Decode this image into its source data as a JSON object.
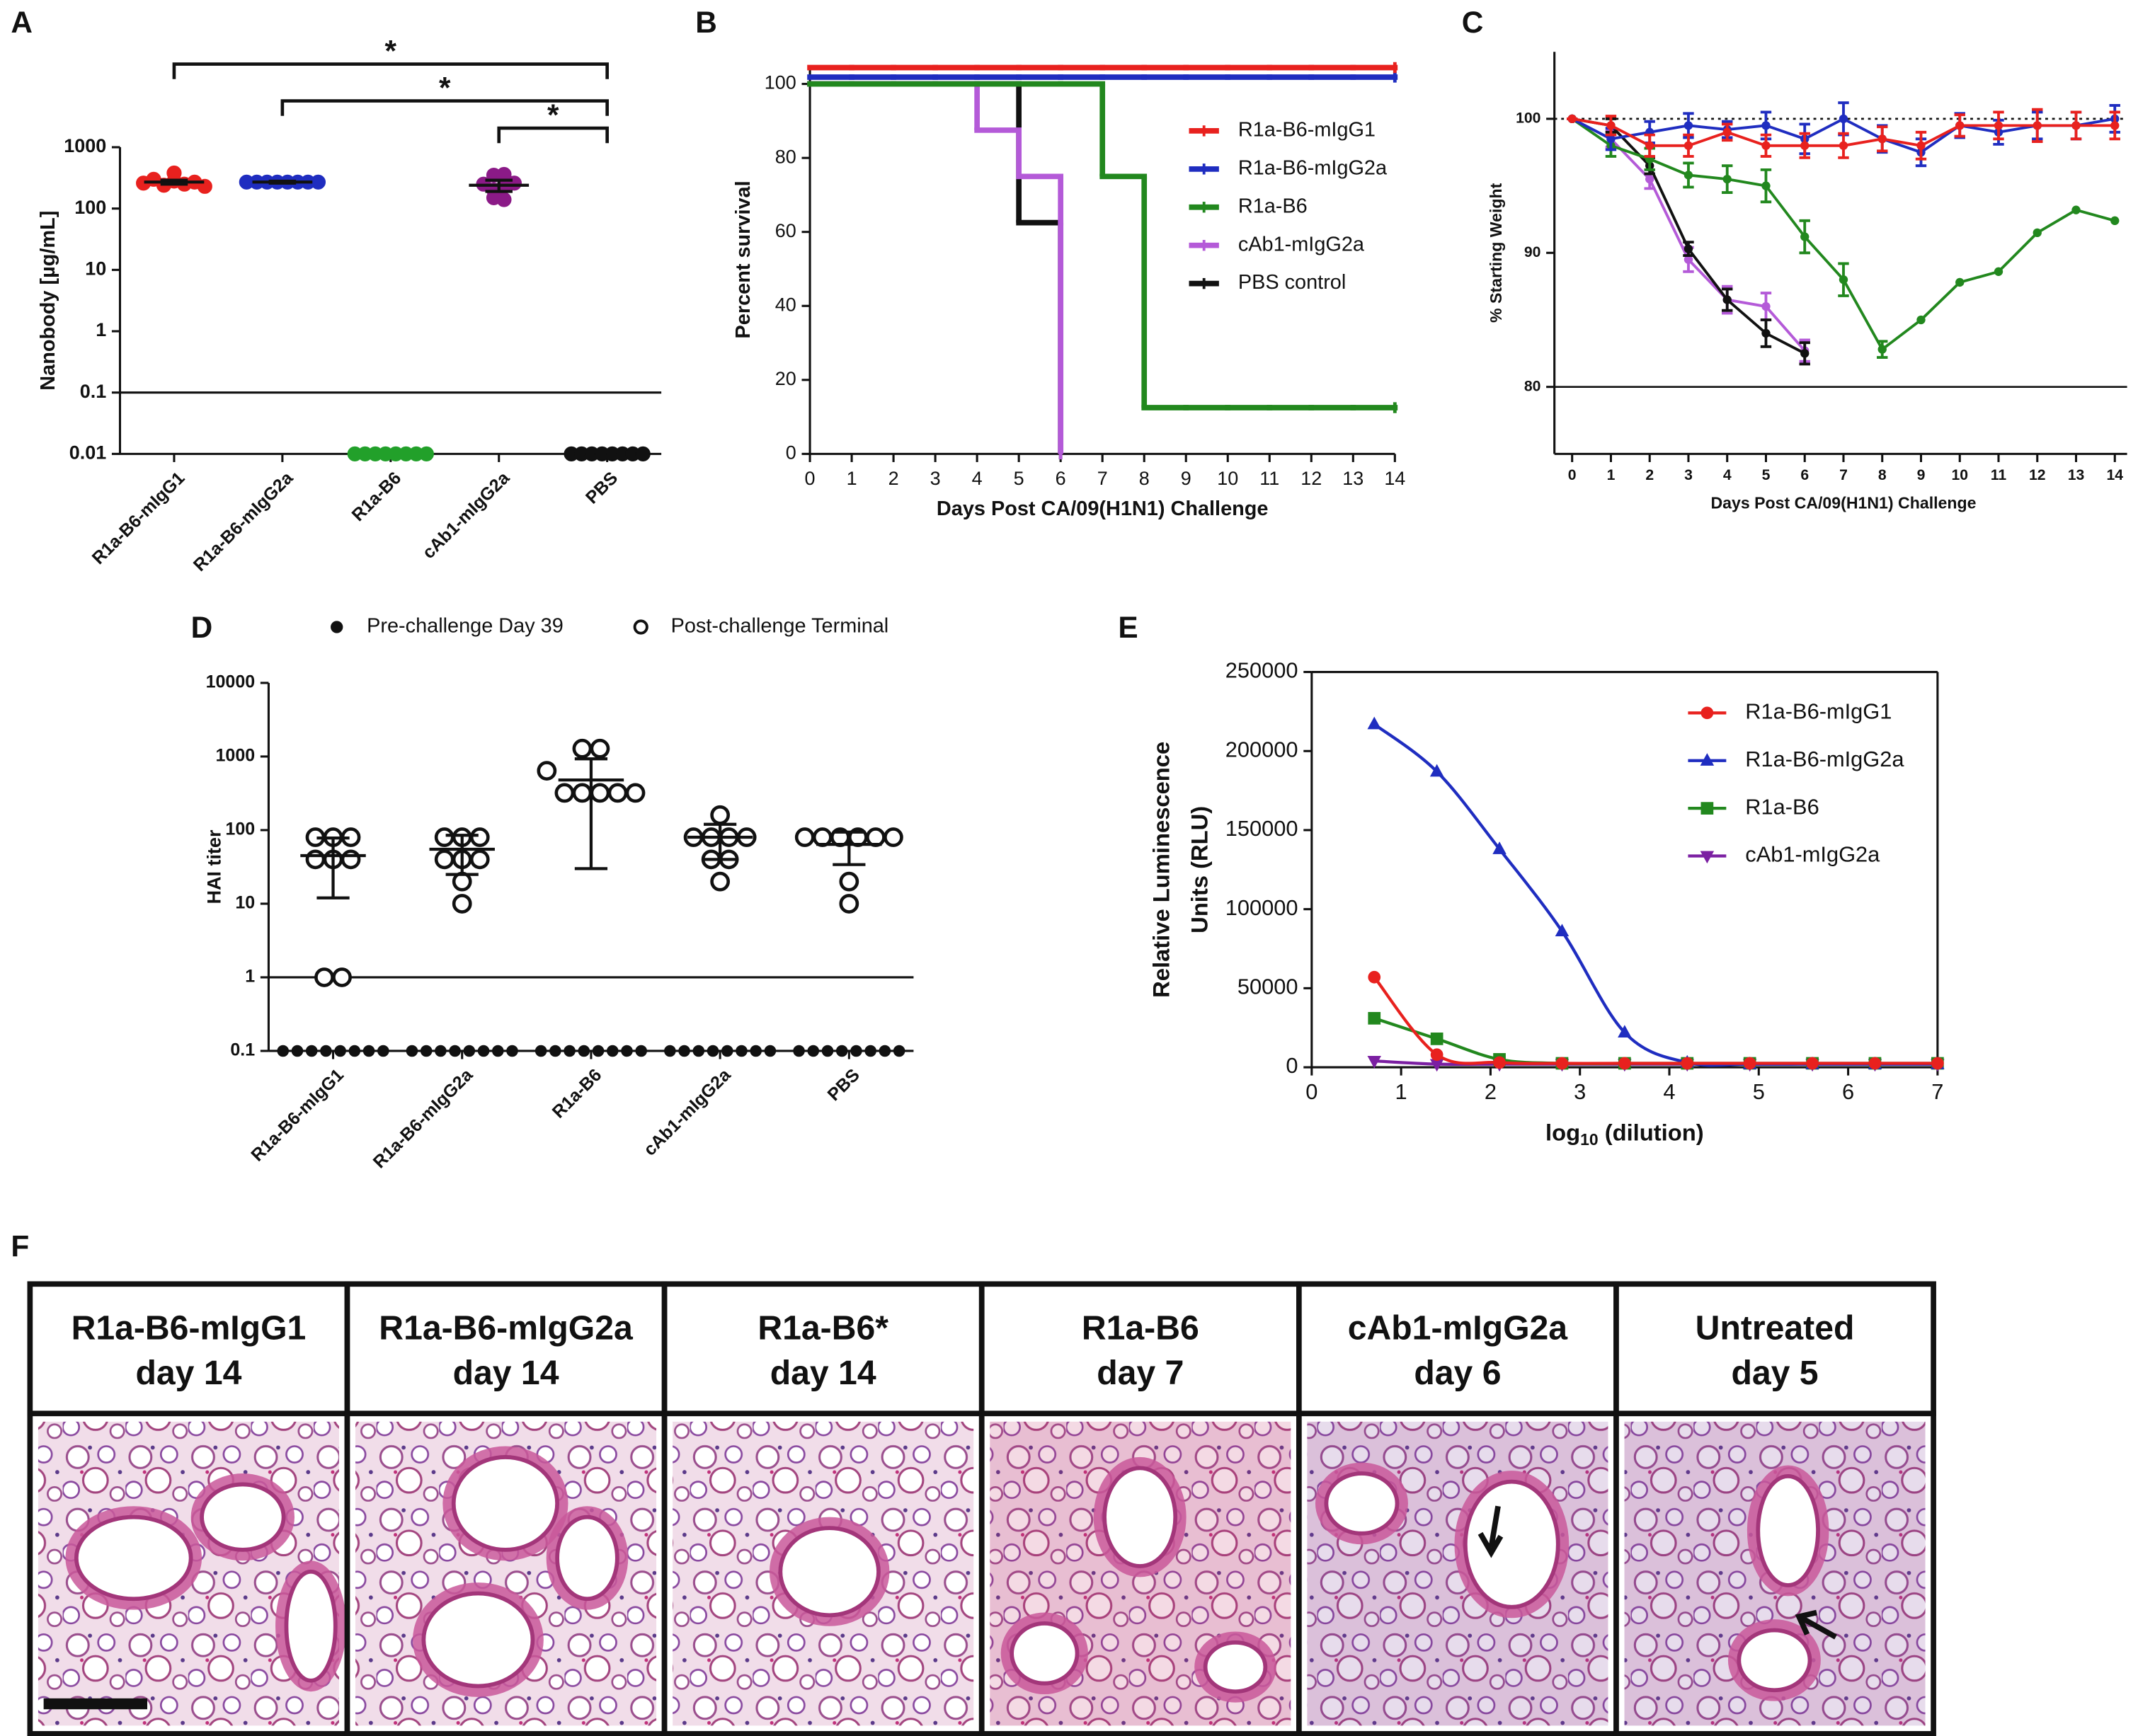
{
  "chart_data": [
    {
      "panel": "A",
      "type": "dot",
      "log_y": true,
      "ylabel": "Nanobody [µg/mL]",
      "ylim": [
        0.01,
        1000
      ],
      "yticks": [
        0.01,
        0.1,
        1,
        10,
        100,
        1000
      ],
      "categories": [
        "R1a-B6-mIgG1",
        "R1a-B6-mIgG2a",
        "R1a-B6",
        "cAb1-mIgG2a",
        "PBS"
      ],
      "colors": [
        "#e8211e",
        "#1f2dc0",
        "#22a02a",
        "#8b1a87",
        "#111111"
      ],
      "points": [
        [
          260,
          300,
          240,
          280,
          380,
          250,
          270,
          230
        ],
        [
          270,
          270,
          270,
          270,
          270,
          270,
          270,
          270
        ],
        [
          0.01,
          0.01,
          0.01,
          0.01,
          0.01,
          0.01,
          0.01,
          0.01
        ],
        [
          350,
          360,
          250,
          200,
          230,
          150,
          140,
          260
        ],
        [
          0.01,
          0.01,
          0.01,
          0.01,
          0.01,
          0.01,
          0.01,
          0.01
        ]
      ],
      "means": [
        270,
        270,
        null,
        240,
        null
      ],
      "errors": [
        20,
        10,
        null,
        50,
        null
      ],
      "reference_line": 0.1,
      "brackets": [
        {
          "from": 0,
          "to": 4,
          "label": "*"
        },
        {
          "from": 1,
          "to": 4,
          "label": "*"
        },
        {
          "from": 3,
          "to": 4,
          "label": "*"
        }
      ]
    },
    {
      "panel": "B",
      "type": "line",
      "step": true,
      "ylabel": "Percent survival",
      "xlabel": "Days Post CA/09(H1N1) Challenge",
      "x": [
        0,
        1,
        2,
        3,
        4,
        5,
        6,
        7,
        8,
        9,
        10,
        11,
        12,
        13,
        14
      ],
      "xlim": [
        0,
        14
      ],
      "xticks": [
        0,
        1,
        2,
        3,
        4,
        5,
        6,
        7,
        8,
        9,
        10,
        11,
        12,
        13,
        14
      ],
      "ylim": [
        0,
        105
      ],
      "yticks": [
        0,
        20,
        40,
        60,
        80,
        100
      ],
      "legend": "upper right",
      "series": [
        {
          "name": "R1a-B6-mIgG1",
          "color": "#e8211e",
          "values": [
            100,
            100,
            100,
            100,
            100,
            100,
            100,
            100,
            100,
            100,
            100,
            100,
            100,
            100,
            100
          ]
        },
        {
          "name": "R1a-B6-mIgG2a",
          "color": "#1f2dc0",
          "values": [
            100,
            100,
            100,
            100,
            100,
            100,
            100,
            100,
            100,
            100,
            100,
            100,
            100,
            100,
            100
          ]
        },
        {
          "name": "R1a-B6",
          "color": "#22881e",
          "values": [
            100,
            100,
            100,
            100,
            100,
            100,
            100,
            75,
            12.5,
            12.5,
            12.5,
            12.5,
            12.5,
            12.5,
            12.5
          ]
        },
        {
          "name": "cAb1-mIgG2a",
          "color": "#b45ad8",
          "values": [
            100,
            100,
            100,
            100,
            87.5,
            75,
            0,
            null,
            null,
            null,
            null,
            null,
            null,
            null,
            null
          ]
        },
        {
          "name": "PBS control",
          "color": "#111111",
          "values": [
            100,
            100,
            100,
            100,
            100,
            62.5,
            0,
            null,
            null,
            null,
            null,
            null,
            null,
            null,
            null
          ]
        }
      ]
    },
    {
      "panel": "C",
      "type": "line",
      "ylabel": "% Starting Weight",
      "xlabel": "Days Post CA/09(H1N1) Challenge",
      "x": [
        0,
        1,
        2,
        3,
        4,
        5,
        6,
        7,
        8,
        9,
        10,
        11,
        12,
        13,
        14
      ],
      "xlim": [
        0,
        14
      ],
      "xticks": [
        0,
        1,
        2,
        3,
        4,
        5,
        6,
        7,
        8,
        9,
        10,
        11,
        12,
        13,
        14
      ],
      "ylim": [
        75,
        105
      ],
      "yticks": [
        80,
        90,
        100
      ],
      "reference_lines": [
        {
          "value": 100,
          "style": "dotted"
        },
        {
          "value": 80,
          "style": "solid"
        }
      ],
      "series": [
        {
          "color": "#e8211e",
          "values": [
            100,
            99.5,
            98,
            98,
            99,
            98,
            98,
            98,
            98.5,
            98,
            99.5,
            99.5,
            99.5,
            99.5,
            99.5
          ],
          "errors": [
            0,
            0.7,
            0.8,
            0.8,
            0.6,
            0.8,
            0.9,
            0.9,
            0.9,
            1,
            0.8,
            1,
            1.2,
            1,
            1
          ]
        },
        {
          "color": "#1f2dc0",
          "values": [
            100,
            98.5,
            99,
            99.5,
            99.2,
            99.5,
            98.5,
            100,
            98.5,
            97.5,
            99.5,
            99,
            99.5,
            99.5,
            100
          ],
          "errors": [
            0,
            0.8,
            0.8,
            0.9,
            0.6,
            1,
            1.1,
            1.2,
            1,
            1,
            0.9,
            0.9,
            1,
            1,
            1
          ]
        },
        {
          "color": "#22881e",
          "values": [
            100,
            98,
            97,
            95.8,
            95.5,
            95,
            91.2,
            88,
            82.8,
            85,
            87.8,
            88.6,
            91.5,
            93.2,
            92.4
          ],
          "errors": [
            0,
            0.8,
            0.8,
            0.9,
            1,
            1.2,
            1.2,
            1.2,
            0.6,
            null,
            null,
            null,
            null,
            null,
            null
          ]
        },
        {
          "color": "#111111",
          "values": [
            100,
            99.5,
            96.5,
            90.3,
            86.5,
            84,
            82.5,
            null,
            null,
            null,
            null,
            null,
            null,
            null,
            null
          ],
          "errors": [
            0,
            0.5,
            0.6,
            0.5,
            0.8,
            1,
            0.8,
            null,
            null,
            null,
            null,
            null,
            null,
            null,
            null
          ]
        },
        {
          "color": "#b45ad8",
          "values": [
            100,
            98.5,
            95.5,
            89.5,
            86.5,
            86,
            82.7,
            null,
            null,
            null,
            null,
            null,
            null,
            null,
            null
          ],
          "errors": [
            0,
            0.6,
            0.7,
            0.9,
            1,
            1,
            0.8,
            null,
            null,
            null,
            null,
            null,
            null,
            null,
            null
          ]
        }
      ]
    },
    {
      "panel": "D",
      "type": "dot",
      "log_y": true,
      "ylabel": "HAI titer",
      "ylim": [
        0.1,
        10000
      ],
      "yticks": [
        0.1,
        1,
        10,
        100,
        1000,
        10000
      ],
      "categories": [
        "R1a-B6-mIgG1",
        "R1a-B6-mIgG2a",
        "R1a-B6",
        "cAb1-mIgG2a",
        "PBS"
      ],
      "reference_line": 1,
      "legend": "top",
      "series": [
        {
          "name": "Pre-challenge Day 39",
          "color": "#111111",
          "marker": "filled",
          "points": [
            [
              0.1,
              0.1,
              0.1,
              0.1,
              0.1,
              0.1,
              0.1,
              0.1
            ],
            [
              0.1,
              0.1,
              0.1,
              0.1,
              0.1,
              0.1,
              0.1,
              0.1
            ],
            [
              0.1,
              0.1,
              0.1,
              0.1,
              0.1,
              0.1,
              0.1,
              0.1
            ],
            [
              0.1,
              0.1,
              0.1,
              0.1,
              0.1,
              0.1,
              0.1,
              0.1
            ],
            [
              0.1,
              0.1,
              0.1,
              0.1,
              0.1,
              0.1,
              0.1,
              0.1
            ]
          ]
        },
        {
          "name": "Post-challenge Terminal",
          "color": "#111111",
          "marker": "open",
          "points": [
            [
              80,
              80,
              80,
              40,
              40,
              40,
              1,
              1
            ],
            [
              80,
              80,
              80,
              40,
              40,
              40,
              20,
              10
            ],
            [
              1280,
              1280,
              640,
              320,
              320,
              320,
              320,
              320
            ],
            [
              160,
              80,
              80,
              80,
              80,
              40,
              40,
              20
            ],
            [
              80,
              80,
              80,
              80,
              80,
              80,
              20,
              10
            ]
          ],
          "means": [
            45,
            55,
            480,
            80,
            64
          ],
          "errors": [
            33,
            30,
            450,
            40,
            30
          ]
        }
      ]
    },
    {
      "panel": "E",
      "type": "scatter",
      "curve": "smooth",
      "frame": true,
      "ylabel": [
        "Relative Luminescence",
        "Units (RLU)"
      ],
      "xlabel_parts": [
        "log",
        "10",
        " (dilution)"
      ],
      "x": [
        0.7,
        1.4,
        2.1,
        2.8,
        3.5,
        4.2,
        4.9,
        5.6,
        6.3,
        7.0
      ],
      "xlim": [
        0,
        7
      ],
      "xticks": [
        0,
        1,
        2,
        3,
        4,
        5,
        6,
        7
      ],
      "ylim": [
        0,
        250000
      ],
      "yticks": [
        0,
        50000,
        100000,
        150000,
        200000,
        250000
      ],
      "legend": "upper right",
      "series": [
        {
          "name": "R1a-B6-mIgG1",
          "color": "#e8211e",
          "marker": "circle",
          "values": [
            57000,
            8000,
            3000,
            2500,
            2500,
            2500,
            2500,
            2500,
            2500,
            2500
          ]
        },
        {
          "name": "R1a-B6-mIgG2a",
          "color": "#1f2dc0",
          "marker": "triangle",
          "values": [
            217000,
            187000,
            138000,
            86000,
            22000,
            3000,
            2000,
            2000,
            2000,
            2000
          ]
        },
        {
          "name": "R1a-B6",
          "color": "#22881e",
          "marker": "square",
          "values": [
            31000,
            18000,
            5000,
            2500,
            2500,
            2500,
            2500,
            2500,
            2500,
            2500
          ]
        },
        {
          "name": "cAb1-mIgG2a",
          "color": "#7b1fa2",
          "marker": "triangle-down",
          "values": [
            4000,
            2000,
            2000,
            2000,
            2000,
            2000,
            2000,
            2000,
            2000,
            2000
          ]
        }
      ]
    }
  ],
  "panel_f": {
    "label": "F",
    "panels": [
      {
        "title": "R1a-B6-mIgG1",
        "subtitle": "day 14"
      },
      {
        "title": "R1a-B6-mIgG2a",
        "subtitle": "day 14"
      },
      {
        "title": "R1a-B6*",
        "subtitle": "day 14"
      },
      {
        "title": "R1a-B6",
        "subtitle": "day 7"
      },
      {
        "title": "cAb1-mIgG2a",
        "subtitle": "day 6"
      },
      {
        "title": "Untreated",
        "subtitle": "day 5"
      }
    ]
  }
}
